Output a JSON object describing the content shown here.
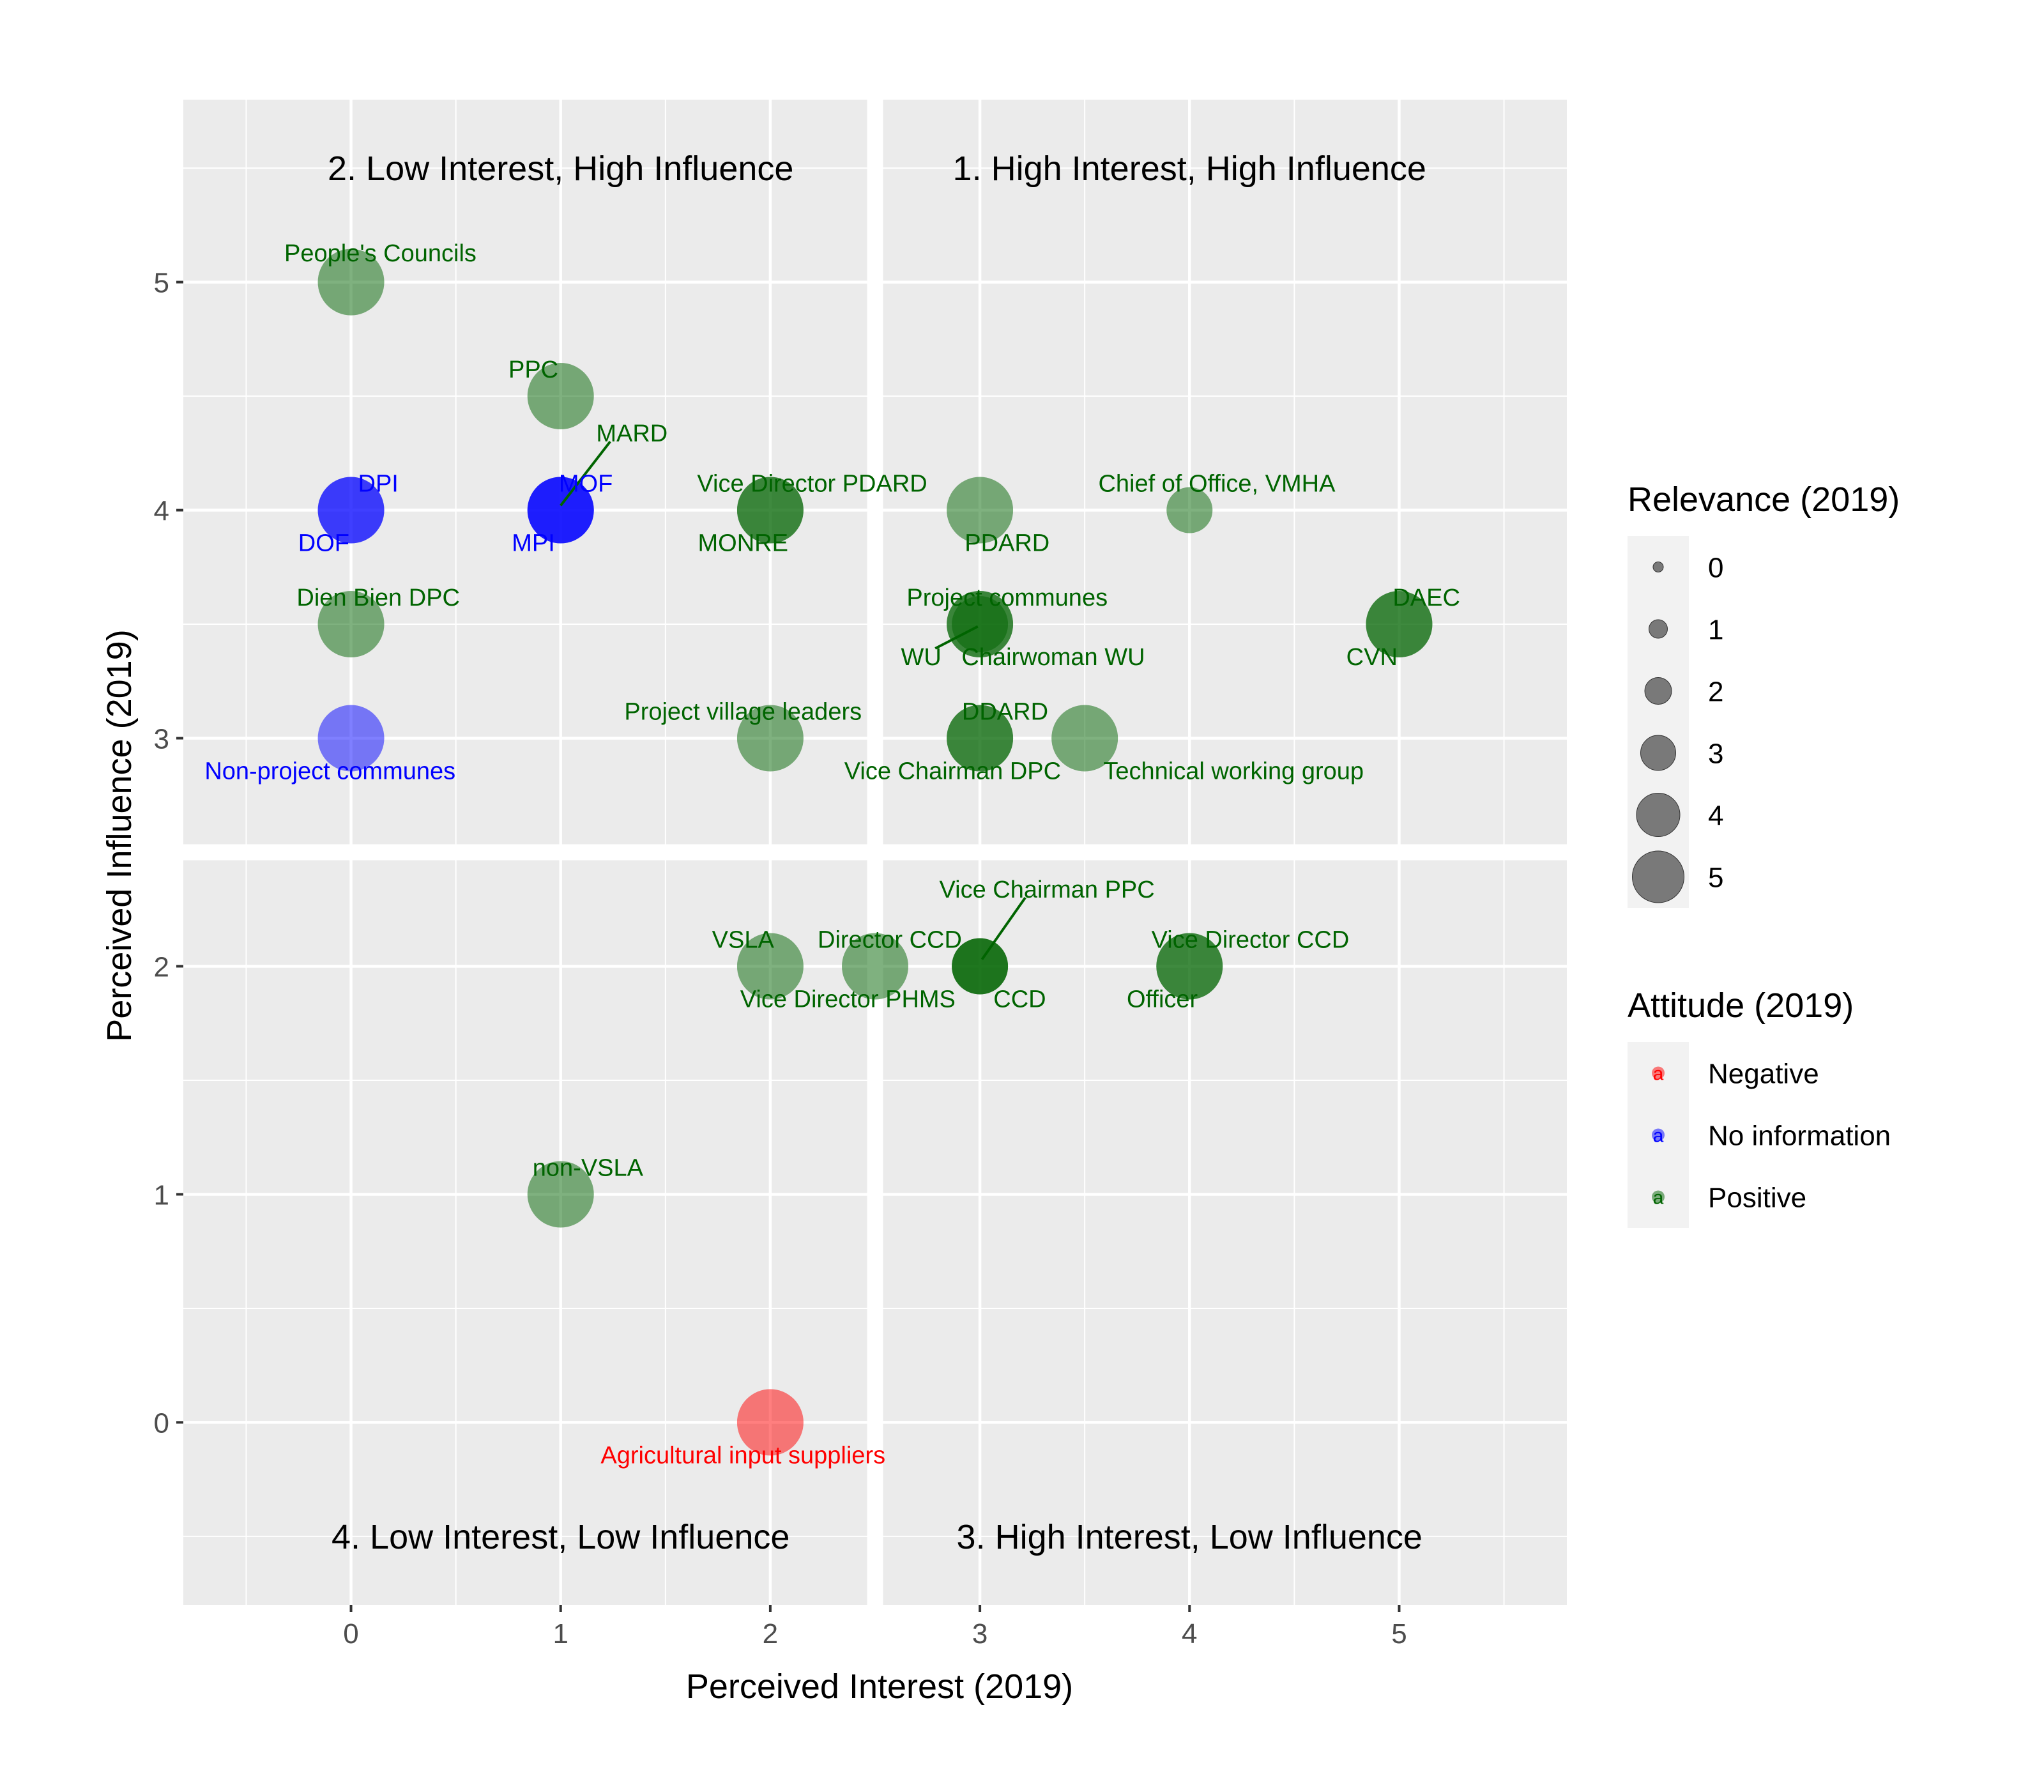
{
  "chart_data": {
    "type": "scatter",
    "xlabel": "Perceived Interest (2019)",
    "ylabel": "Perceived Influence (2019)",
    "xlim": [
      -0.8,
      5.8
    ],
    "ylim": [
      -0.8,
      5.8
    ],
    "x_ticks": [
      0,
      1,
      2,
      3,
      4,
      5
    ],
    "y_ticks": [
      0,
      1,
      2,
      3,
      4,
      5
    ],
    "grid": true,
    "quadrant_split": {
      "x": 2.5,
      "y": 2.5
    },
    "quadrant_labels": [
      {
        "label": "2. Low Interest, High Influence",
        "x": 1.0,
        "y": 5.5
      },
      {
        "label": "1. High Interest, High Influence",
        "x": 4.0,
        "y": 5.5
      },
      {
        "label": "4. Low Interest, Low Influence",
        "x": 1.0,
        "y": -0.5
      },
      {
        "label": "3. High Interest, Low Influence",
        "x": 4.0,
        "y": -0.5
      }
    ],
    "attitude_colors": {
      "Negative": "#ff0000",
      "No information": "#0000ff",
      "Positive": "#006400"
    },
    "legend_relevance": {
      "title": "Relevance (2019)",
      "levels": [
        "0",
        "1",
        "2",
        "3",
        "4",
        "5"
      ]
    },
    "legend_attitude": {
      "title": "Attitude (2019)",
      "glyph": "a",
      "entries": [
        "Negative",
        "No information",
        "Positive"
      ]
    },
    "legend_placement": "right",
    "points": [
      {
        "x": 0,
        "y": 5,
        "attitude": "Positive",
        "relevance": 4
      },
      {
        "x": 1,
        "y": 4.5,
        "attitude": "Positive",
        "relevance": 4
      },
      {
        "x": 1,
        "y": 4,
        "attitude": "No information",
        "relevance": 4
      },
      {
        "x": 1,
        "y": 4,
        "attitude": "No information",
        "relevance": 4
      },
      {
        "x": 1,
        "y": 4,
        "attitude": "No information",
        "relevance": 4
      },
      {
        "x": 0,
        "y": 4,
        "attitude": "No information",
        "relevance": 4
      },
      {
        "x": 0,
        "y": 4,
        "attitude": "No information",
        "relevance": 4
      },
      {
        "x": 2,
        "y": 4,
        "attitude": "Positive",
        "relevance": 4
      },
      {
        "x": 2,
        "y": 4,
        "attitude": "Positive",
        "relevance": 4
      },
      {
        "x": 3,
        "y": 4,
        "attitude": "Positive",
        "relevance": 4
      },
      {
        "x": 4,
        "y": 4,
        "attitude": "Positive",
        "relevance": 2
      },
      {
        "x": 0,
        "y": 3.5,
        "attitude": "Positive",
        "relevance": 4
      },
      {
        "x": 3,
        "y": 3.5,
        "attitude": "Positive",
        "relevance": 4
      },
      {
        "x": 3,
        "y": 3.5,
        "attitude": "Positive",
        "relevance": 4
      },
      {
        "x": 3,
        "y": 3.5,
        "attitude": "Positive",
        "relevance": 3
      },
      {
        "x": 5,
        "y": 3.5,
        "attitude": "Positive",
        "relevance": 4
      },
      {
        "x": 5,
        "y": 3.5,
        "attitude": "Positive",
        "relevance": 4
      },
      {
        "x": 0,
        "y": 3,
        "attitude": "No information",
        "relevance": 4
      },
      {
        "x": 2,
        "y": 3,
        "attitude": "Positive",
        "relevance": 4
      },
      {
        "x": 3,
        "y": 3,
        "attitude": "Positive",
        "relevance": 4
      },
      {
        "x": 3,
        "y": 3,
        "attitude": "Positive",
        "relevance": 4
      },
      {
        "x": 3.5,
        "y": 3,
        "attitude": "Positive",
        "relevance": 4
      },
      {
        "x": 2,
        "y": 2,
        "attitude": "Positive",
        "relevance": 4
      },
      {
        "x": 2.5,
        "y": 2,
        "attitude": "Positive",
        "relevance": 4
      },
      {
        "x": 3,
        "y": 2,
        "attitude": "Positive",
        "relevance": 3
      },
      {
        "x": 3,
        "y": 2,
        "attitude": "Positive",
        "relevance": 3
      },
      {
        "x": 3,
        "y": 2,
        "attitude": "Positive",
        "relevance": 3
      },
      {
        "x": 4,
        "y": 2,
        "attitude": "Positive",
        "relevance": 4
      },
      {
        "x": 4,
        "y": 2,
        "attitude": "Positive",
        "relevance": 4
      },
      {
        "x": 1,
        "y": 1,
        "attitude": "Positive",
        "relevance": 4
      },
      {
        "x": 2,
        "y": 0,
        "attitude": "Negative",
        "relevance": 4
      }
    ],
    "annotations": [
      {
        "label": "People's Councils",
        "x": 0.14,
        "y": 5.13,
        "attitude": "Positive"
      },
      {
        "label": "PPC",
        "x": 0.87,
        "y": 4.62,
        "attitude": "Positive"
      },
      {
        "label": "MARD",
        "x": 1.34,
        "y": 4.34,
        "attitude": "Positive",
        "leader_to": [
          1.0,
          4.02
        ]
      },
      {
        "label": "DPI",
        "x": 0.13,
        "y": 4.12,
        "attitude": "No information"
      },
      {
        "label": "MOF",
        "x": 1.12,
        "y": 4.12,
        "attitude": "No information"
      },
      {
        "label": "DOF",
        "x": -0.13,
        "y": 3.86,
        "attitude": "No information"
      },
      {
        "label": "MPI",
        "x": 0.87,
        "y": 3.86,
        "attitude": "No information"
      },
      {
        "label": "Vice Director PDARD",
        "x": 2.2,
        "y": 4.12,
        "attitude": "Positive"
      },
      {
        "label": "MONRE",
        "x": 1.87,
        "y": 3.86,
        "attitude": "Positive"
      },
      {
        "label": "PDARD",
        "x": 3.13,
        "y": 3.86,
        "attitude": "Positive"
      },
      {
        "label": "Chief of Office, VMHA",
        "x": 4.13,
        "y": 4.12,
        "attitude": "Positive"
      },
      {
        "label": "Dien Bien DPC",
        "x": 0.13,
        "y": 3.62,
        "attitude": "Positive"
      },
      {
        "label": "Project communes",
        "x": 3.13,
        "y": 3.62,
        "attitude": "Positive"
      },
      {
        "label": "WU",
        "x": 2.72,
        "y": 3.36,
        "attitude": "Positive",
        "leader_to": [
          2.99,
          3.49
        ]
      },
      {
        "label": "Chairwoman WU",
        "x": 3.35,
        "y": 3.36,
        "attitude": "Positive"
      },
      {
        "label": "DAEC",
        "x": 5.13,
        "y": 3.62,
        "attitude": "Positive"
      },
      {
        "label": "CVN",
        "x": 4.87,
        "y": 3.36,
        "attitude": "Positive"
      },
      {
        "label": "Non-project communes",
        "x": -0.1,
        "y": 2.86,
        "attitude": "No information"
      },
      {
        "label": "Project village leaders",
        "x": 1.87,
        "y": 3.12,
        "attitude": "Positive"
      },
      {
        "label": "DDARD",
        "x": 3.12,
        "y": 3.12,
        "attitude": "Positive"
      },
      {
        "label": "Vice Chairman DPC",
        "x": 2.87,
        "y": 2.86,
        "attitude": "Positive"
      },
      {
        "label": "Technical working group",
        "x": 4.21,
        "y": 2.86,
        "attitude": "Positive"
      },
      {
        "label": "Vice Chairman PPC",
        "x": 3.32,
        "y": 2.34,
        "attitude": "Positive",
        "leader_to": [
          3.01,
          2.03
        ]
      },
      {
        "label": "VSLA",
        "x": 1.87,
        "y": 2.12,
        "attitude": "Positive"
      },
      {
        "label": "Director CCD",
        "x": 2.57,
        "y": 2.12,
        "attitude": "Positive"
      },
      {
        "label": "Vice Director PHMS",
        "x": 2.37,
        "y": 1.86,
        "attitude": "Positive"
      },
      {
        "label": "CCD",
        "x": 3.19,
        "y": 1.86,
        "attitude": "Positive"
      },
      {
        "label": "Vice Director CCD",
        "x": 4.29,
        "y": 2.12,
        "attitude": "Positive"
      },
      {
        "label": "Officer",
        "x": 3.87,
        "y": 1.86,
        "attitude": "Positive"
      },
      {
        "label": "non-VSLA",
        "x": 1.13,
        "y": 1.12,
        "attitude": "Positive"
      },
      {
        "label": "Agricultural input suppliers",
        "x": 1.87,
        "y": -0.14,
        "attitude": "Negative"
      }
    ]
  }
}
